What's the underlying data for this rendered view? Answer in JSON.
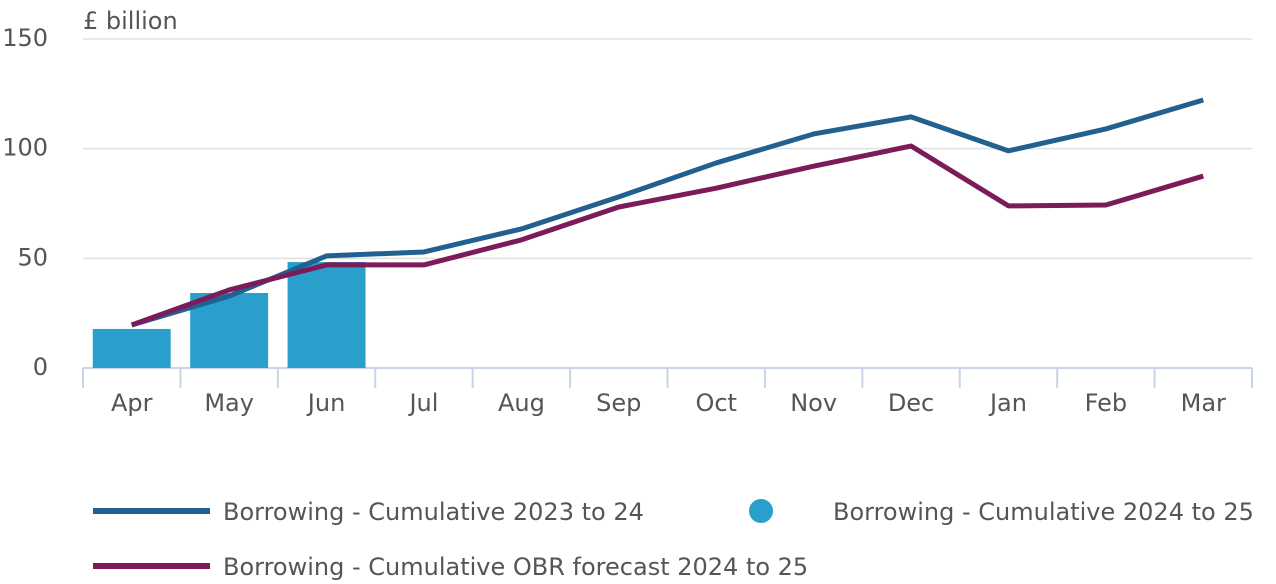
{
  "chart_data": {
    "type": "combo",
    "y_label": "£ billion",
    "categories": [
      "Apr",
      "May",
      "Jun",
      "Jul",
      "Aug",
      "Sep",
      "Oct",
      "Nov",
      "Dec",
      "Jan",
      "Feb",
      "Mar"
    ],
    "series": [
      {
        "name": "Borrowing - Cumulative 2023 to 24",
        "type": "line",
        "color": "#22618f",
        "values": [
          19.6,
          32.8,
          51.1,
          52.9,
          63.4,
          78,
          93.5,
          106.7,
          114.5,
          99,
          109,
          122.2
        ]
      },
      {
        "name": "Borrowing - Cumulative 2024 to 25",
        "type": "bar",
        "color": "#2a9fcb",
        "values": [
          17.8,
          34.2,
          48.3,
          null,
          null,
          null,
          null,
          null,
          null,
          null,
          null,
          null
        ]
      },
      {
        "name": "Borrowing - Cumulative OBR forecast 2024 to 25",
        "type": "line",
        "color": "#7b1b5a",
        "values": [
          19.6,
          35.6,
          47,
          47,
          58.4,
          73.4,
          82,
          92,
          101.2,
          73.9,
          74.3,
          87.5
        ]
      }
    ],
    "ylim": [
      0,
      150
    ],
    "yticks": [
      0,
      50,
      100,
      150
    ],
    "grid": true
  }
}
